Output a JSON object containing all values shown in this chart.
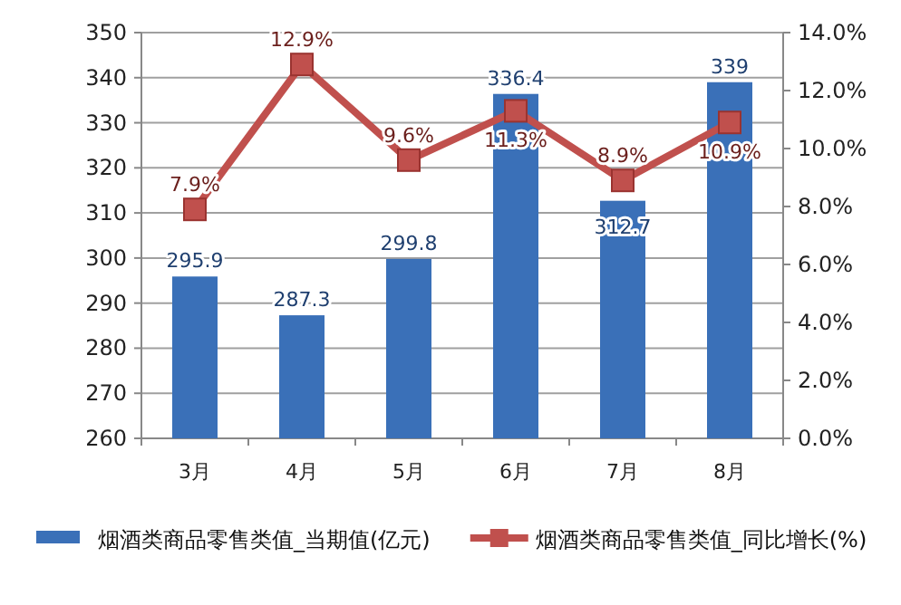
{
  "chart_data": {
    "type": "bar",
    "categories": [
      "3月",
      "4月",
      "5月",
      "6月",
      "7月",
      "8月"
    ],
    "series": [
      {
        "name": "烟酒类商品零售类值_当期值(亿元)",
        "color": "#3a70b8",
        "values": [
          295.9,
          287.3,
          299.8,
          336.4,
          312.7,
          339
        ],
        "value_labels": [
          "295.9",
          "287.3",
          "299.8",
          "336.4",
          "312.7",
          "339"
        ]
      },
      {
        "name": "烟酒类商品零售类值_同比增长(%)",
        "type": "line",
        "axis": "y2",
        "color": "#c0504d",
        "marker": "square",
        "values": [
          7.9,
          12.9,
          9.6,
          11.3,
          8.9,
          10.9
        ],
        "value_labels": [
          "7.9%",
          "12.9%",
          "9.6%",
          "11.3%",
          "8.9%",
          "10.9%"
        ]
      }
    ],
    "ylim": [
      260,
      350
    ],
    "yticks": [
      260,
      270,
      280,
      290,
      300,
      310,
      320,
      330,
      340,
      350
    ],
    "y2lim": [
      0,
      14
    ],
    "y2ticks": [
      {
        "value": 0,
        "label": "0.0%"
      },
      {
        "value": 2,
        "label": "2.0%"
      },
      {
        "value": 4,
        "label": "4.0%"
      },
      {
        "value": 6,
        "label": "6.0%"
      },
      {
        "value": 8,
        "label": "8.0%"
      },
      {
        "value": 10,
        "label": "10.0%"
      },
      {
        "value": 12,
        "label": "12.0%"
      },
      {
        "value": 14,
        "label": "14.0%"
      }
    ],
    "grid": "y",
    "legend": "bottom"
  }
}
